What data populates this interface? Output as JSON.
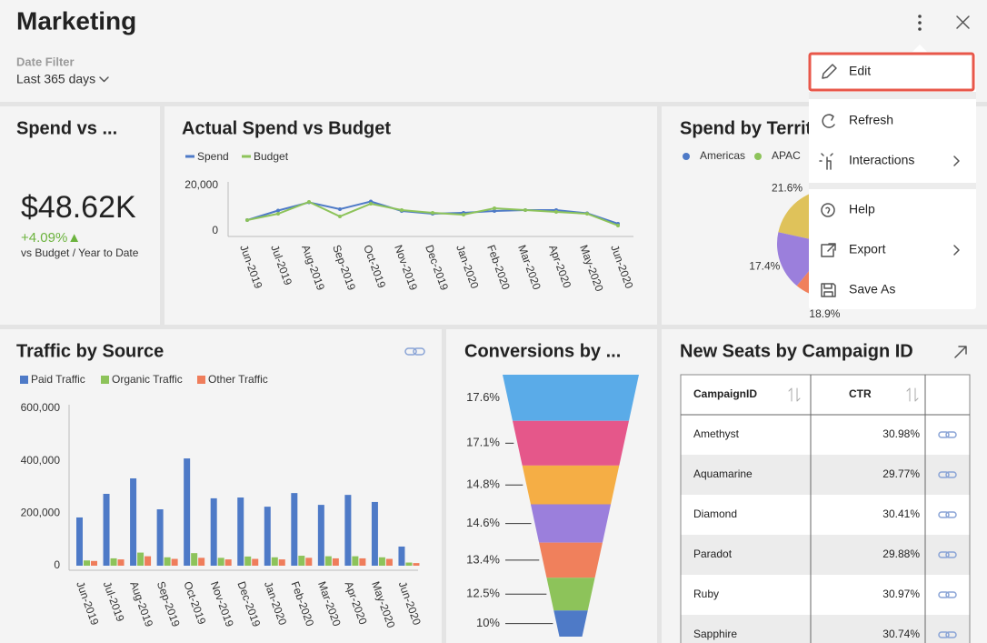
{
  "header": {
    "title": "Marketing",
    "filter_label": "Date Filter",
    "filter_value": "Last 365 days"
  },
  "kpi": {
    "title": "Spend vs ...",
    "value": "$48.62K",
    "change": "+4.09%▲",
    "caption": "vs Budget / Year to Date"
  },
  "spend_chart": {
    "type": "line",
    "title": "Actual Spend vs Budget",
    "categories": [
      "Jun-2019",
      "Jul-2019",
      "Aug-2019",
      "Sep-2019",
      "Oct-2019",
      "Nov-2019",
      "Dec-2019",
      "Jan-2020",
      "Feb-2020",
      "Mar-2020",
      "Apr-2020",
      "May-2020",
      "Jun-2020"
    ],
    "series": [
      {
        "name": "Spend",
        "color": "#4e7ac7",
        "values": [
          4800,
          9000,
          12600,
          9600,
          13000,
          8800,
          7600,
          8000,
          8800,
          9200,
          9200,
          7800,
          3200
        ]
      },
      {
        "name": "Budget",
        "color": "#8dc35a",
        "values": [
          4800,
          7600,
          12800,
          6400,
          12000,
          9200,
          8000,
          7200,
          10000,
          9200,
          8400,
          7600,
          2400
        ]
      }
    ],
    "ylim": [
      0,
      20000
    ],
    "yticks": [
      0,
      {
        "value": 20000,
        "label": "20,000"
      }
    ]
  },
  "territory_chart": {
    "type": "pie",
    "title": "Spend by Territory",
    "legend": [
      {
        "name": "Americas",
        "color": "#4e7ac7"
      },
      {
        "name": "APAC",
        "color": "#8dc35a"
      }
    ],
    "values": [
      21.6,
      17.4,
      18.9
    ],
    "value_labels": [
      "21.6%",
      "17.4%",
      "18.9%"
    ],
    "colors": [
      "#dfc25a",
      "#9b7fdc",
      "#f0805c"
    ]
  },
  "traffic_chart": {
    "type": "bar",
    "title": "Traffic by Source",
    "categories": [
      "Jun-2019",
      "Jul-2019",
      "Aug-2019",
      "Sep-2019",
      "Oct-2019",
      "Nov-2019",
      "Dec-2019",
      "Jan-2020",
      "Feb-2020",
      "Mar-2020",
      "Apr-2020",
      "May-2020",
      "Jun-2020"
    ],
    "series": [
      {
        "name": "Paid Traffic",
        "color": "#4e7ac7",
        "values": [
          184000,
          274000,
          333000,
          215000,
          409000,
          257000,
          260000,
          225000,
          277000,
          232000,
          270000,
          243000,
          73000
        ]
      },
      {
        "name": "Organic Traffic",
        "color": "#8dc35a",
        "values": [
          20000,
          28000,
          50000,
          32000,
          48000,
          30000,
          35000,
          32000,
          38000,
          36000,
          36000,
          32000,
          12000
        ]
      },
      {
        "name": "Other Traffic",
        "color": "#ef7d5b",
        "values": [
          18000,
          24000,
          36000,
          26000,
          30000,
          24000,
          26000,
          24000,
          30000,
          28000,
          28000,
          26000,
          10000
        ]
      }
    ],
    "ylim": [
      0,
      600000
    ],
    "yticks": [
      0,
      {
        "value": 200000,
        "label": "200,000"
      },
      {
        "value": 400000,
        "label": "400,000"
      },
      {
        "value": 600000,
        "label": "600,000"
      }
    ]
  },
  "conversions_chart": {
    "type": "funnel",
    "title": "Conversions by ...",
    "values": [
      17.6,
      17.1,
      14.8,
      14.6,
      13.4,
      12.5,
      10
    ],
    "value_labels": [
      "17.6%",
      "17.1%",
      "14.8%",
      "14.6%",
      "13.4%",
      "12.5%",
      "10%"
    ],
    "colors": [
      "#5aabe8",
      "#e5578a",
      "#f5ae45",
      "#9b7fdc",
      "#f0805c",
      "#8dc35a",
      "#4e7ac7"
    ]
  },
  "seats_table": {
    "title": "New Seats by Campaign ID",
    "columns": [
      "CampaignID",
      "CTR"
    ],
    "rows": [
      [
        "Amethyst",
        "30.98%"
      ],
      [
        "Aquamarine",
        "29.77%"
      ],
      [
        "Diamond",
        "30.41%"
      ],
      [
        "Paradot",
        "29.88%"
      ],
      [
        "Ruby",
        "30.97%"
      ],
      [
        "Sapphire",
        "30.74%"
      ]
    ]
  },
  "menu": {
    "items": [
      {
        "label": "Edit",
        "highlighted": true
      },
      {
        "label": "Refresh"
      },
      {
        "label": "Interactions",
        "submenu": true
      },
      {
        "label": "Help"
      },
      {
        "label": "Export",
        "submenu": true
      },
      {
        "label": "Save As"
      }
    ]
  }
}
